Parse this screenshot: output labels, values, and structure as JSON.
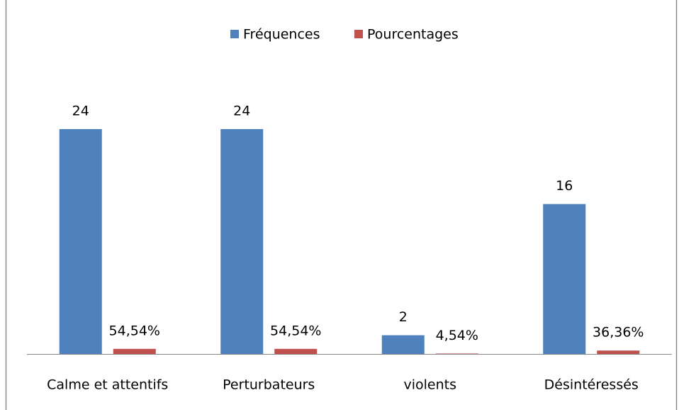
{
  "chart_data": {
    "type": "bar",
    "categories": [
      "Calme et attentifs",
      "Perturbateurs",
      "violents",
      "Désintéressés"
    ],
    "series": [
      {
        "name": "Fréquences",
        "color": "#4f81bd",
        "values": [
          24,
          24,
          2,
          16
        ]
      },
      {
        "name": "Pourcentages",
        "color": "#c0504d",
        "values": [
          0.5454,
          0.5454,
          0.0454,
          0.3636
        ],
        "value_labels": [
          "54,54%",
          "54,54%",
          "4,54%",
          "36,36%"
        ]
      }
    ],
    "ylim": [
      0,
      30
    ],
    "legend": "top"
  }
}
